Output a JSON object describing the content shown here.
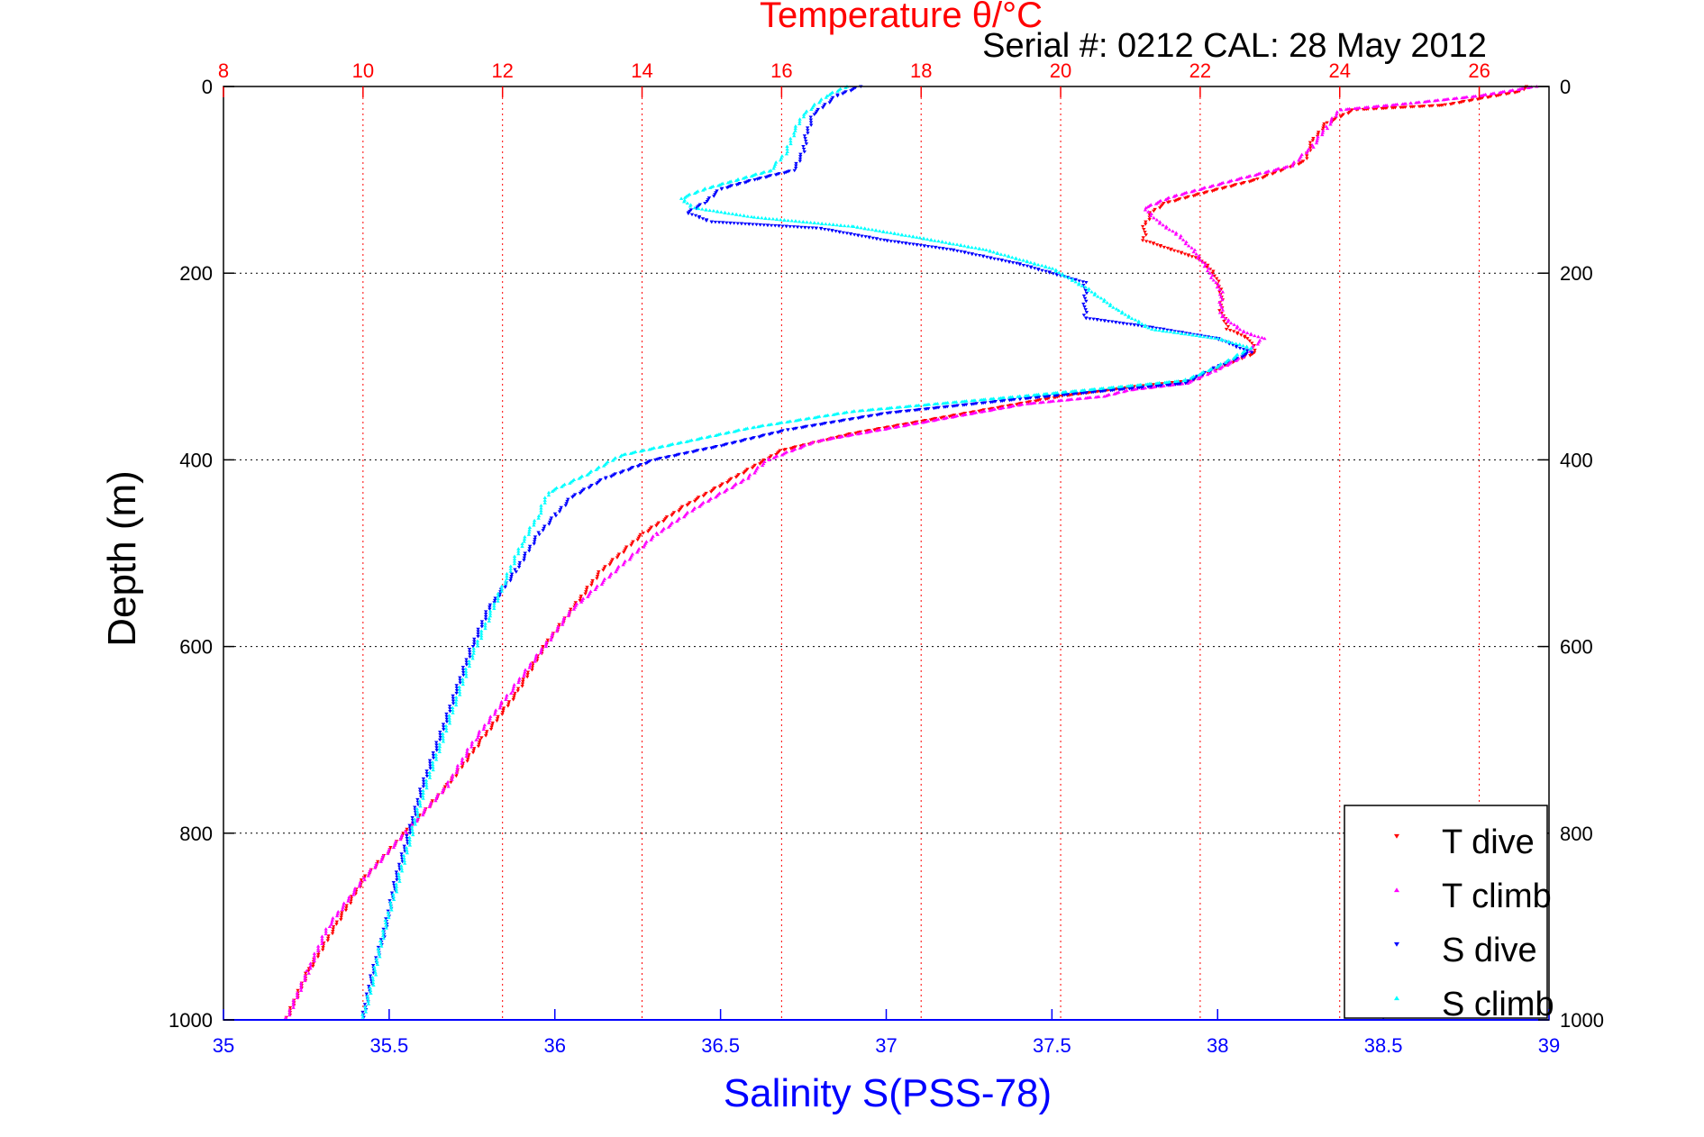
{
  "chart_data": {
    "type": "scatter",
    "title": "Temperature θ/°C",
    "subtitle": "Serial #: 0212  CAL: 28 May 2012",
    "xlabel": "Salinity S(PSS-78)",
    "ylabel": "Depth (m)",
    "x_salinity": {
      "range": [
        35,
        39
      ],
      "ticks": [
        "35",
        "35.5",
        "36",
        "36.5",
        "37",
        "37.5",
        "38",
        "38.5",
        "39"
      ]
    },
    "x_temperature": {
      "range": [
        8,
        27
      ],
      "ticks": [
        "8",
        "10",
        "12",
        "14",
        "16",
        "18",
        "20",
        "22",
        "24",
        "26"
      ]
    },
    "y_depth": {
      "range": [
        0,
        1000
      ],
      "reversed": true,
      "ticks": [
        "0",
        "200",
        "400",
        "600",
        "800",
        "1000"
      ]
    },
    "grid": true,
    "legend_position": "bottom-right",
    "series": [
      {
        "name": "T dive",
        "axis": "temperature",
        "color": "#ff0000",
        "marker": "triangle-down",
        "points": [
          [
            26.7,
            0
          ],
          [
            26.6,
            5
          ],
          [
            25.5,
            20
          ],
          [
            24.2,
            25
          ],
          [
            23.8,
            40
          ],
          [
            23.6,
            60
          ],
          [
            23.5,
            80
          ],
          [
            22.8,
            100
          ],
          [
            22.0,
            115
          ],
          [
            21.5,
            125
          ],
          [
            21.3,
            135
          ],
          [
            21.2,
            150
          ],
          [
            21.2,
            165
          ],
          [
            21.6,
            175
          ],
          [
            22.0,
            185
          ],
          [
            22.2,
            200
          ],
          [
            22.3,
            220
          ],
          [
            22.3,
            240
          ],
          [
            22.4,
            260
          ],
          [
            22.7,
            270
          ],
          [
            22.8,
            285
          ],
          [
            22.3,
            300
          ],
          [
            21.9,
            315
          ],
          [
            21.0,
            322
          ],
          [
            20.0,
            332
          ],
          [
            18.5,
            352
          ],
          [
            17.0,
            372
          ],
          [
            16.0,
            390
          ],
          [
            15.3,
            420
          ],
          [
            14.6,
            450
          ],
          [
            14.0,
            480
          ],
          [
            13.4,
            520
          ],
          [
            13.0,
            560
          ],
          [
            12.6,
            600
          ],
          [
            12.2,
            650
          ],
          [
            11.7,
            700
          ],
          [
            11.2,
            750
          ],
          [
            10.6,
            800
          ],
          [
            10.0,
            850
          ],
          [
            9.6,
            900
          ],
          [
            9.2,
            950
          ],
          [
            8.9,
            1000
          ]
        ]
      },
      {
        "name": "T climb",
        "axis": "temperature",
        "color": "#ff00ff",
        "marker": "triangle-up",
        "points": [
          [
            26.8,
            0
          ],
          [
            26.0,
            10
          ],
          [
            25.0,
            18
          ],
          [
            24.0,
            25
          ],
          [
            23.8,
            45
          ],
          [
            23.6,
            65
          ],
          [
            23.3,
            85
          ],
          [
            22.5,
            100
          ],
          [
            21.6,
            118
          ],
          [
            21.2,
            130
          ],
          [
            21.4,
            145
          ],
          [
            21.7,
            160
          ],
          [
            21.9,
            175
          ],
          [
            22.1,
            195
          ],
          [
            22.3,
            220
          ],
          [
            22.3,
            245
          ],
          [
            22.6,
            262
          ],
          [
            22.9,
            270
          ],
          [
            22.6,
            290
          ],
          [
            22.2,
            305
          ],
          [
            21.8,
            318
          ],
          [
            21.0,
            325
          ],
          [
            20.6,
            332
          ],
          [
            19.5,
            340
          ],
          [
            18.0,
            360
          ],
          [
            16.5,
            380
          ],
          [
            15.8,
            400
          ],
          [
            15.5,
            420
          ],
          [
            14.8,
            450
          ],
          [
            14.2,
            480
          ],
          [
            13.6,
            520
          ],
          [
            13.0,
            560
          ],
          [
            12.6,
            600
          ],
          [
            12.1,
            650
          ],
          [
            11.6,
            700
          ],
          [
            11.2,
            750
          ],
          [
            10.6,
            800
          ],
          [
            10.0,
            850
          ],
          [
            9.5,
            900
          ],
          [
            9.2,
            950
          ],
          [
            8.9,
            1000
          ]
        ]
      },
      {
        "name": "S dive",
        "axis": "salinity",
        "color": "#0000ff",
        "marker": "triangle-down",
        "points": [
          [
            36.92,
            0
          ],
          [
            36.85,
            10
          ],
          [
            36.78,
            30
          ],
          [
            36.76,
            50
          ],
          [
            36.75,
            70
          ],
          [
            36.72,
            90
          ],
          [
            36.6,
            100
          ],
          [
            36.5,
            110
          ],
          [
            36.45,
            125
          ],
          [
            36.4,
            135
          ],
          [
            36.47,
            145
          ],
          [
            36.8,
            152
          ],
          [
            37.0,
            165
          ],
          [
            37.2,
            175
          ],
          [
            37.4,
            190
          ],
          [
            37.6,
            210
          ],
          [
            37.6,
            230
          ],
          [
            37.6,
            248
          ],
          [
            37.8,
            258
          ],
          [
            38.0,
            270
          ],
          [
            38.1,
            285
          ],
          [
            38.0,
            300
          ],
          [
            37.9,
            318
          ],
          [
            37.4,
            335
          ],
          [
            37.0,
            350
          ],
          [
            36.7,
            368
          ],
          [
            36.5,
            385
          ],
          [
            36.3,
            400
          ],
          [
            36.15,
            420
          ],
          [
            36.05,
            440
          ],
          [
            36.0,
            460
          ],
          [
            35.95,
            480
          ],
          [
            35.88,
            520
          ],
          [
            35.8,
            560
          ],
          [
            35.75,
            600
          ],
          [
            35.7,
            650
          ],
          [
            35.65,
            700
          ],
          [
            35.6,
            750
          ],
          [
            35.56,
            800
          ],
          [
            35.52,
            850
          ],
          [
            35.49,
            900
          ],
          [
            35.45,
            950
          ],
          [
            35.42,
            1000
          ]
        ]
      },
      {
        "name": "S climb",
        "axis": "salinity",
        "color": "#00ffff",
        "marker": "triangle-up",
        "points": [
          [
            36.88,
            0
          ],
          [
            36.82,
            10
          ],
          [
            36.75,
            30
          ],
          [
            36.72,
            50
          ],
          [
            36.7,
            70
          ],
          [
            36.65,
            90
          ],
          [
            36.55,
            100
          ],
          [
            36.45,
            110
          ],
          [
            36.38,
            120
          ],
          [
            36.42,
            130
          ],
          [
            36.6,
            140
          ],
          [
            36.9,
            150
          ],
          [
            37.1,
            162
          ],
          [
            37.3,
            175
          ],
          [
            37.5,
            195
          ],
          [
            37.6,
            215
          ],
          [
            37.7,
            240
          ],
          [
            37.8,
            260
          ],
          [
            38.0,
            270
          ],
          [
            38.1,
            280
          ],
          [
            38.0,
            300
          ],
          [
            37.9,
            315
          ],
          [
            37.4,
            332
          ],
          [
            36.9,
            348
          ],
          [
            36.6,
            365
          ],
          [
            36.4,
            380
          ],
          [
            36.2,
            395
          ],
          [
            36.1,
            415
          ],
          [
            35.98,
            435
          ],
          [
            35.95,
            460
          ],
          [
            35.9,
            490
          ],
          [
            35.85,
            530
          ],
          [
            35.8,
            570
          ],
          [
            35.75,
            610
          ],
          [
            35.7,
            660
          ],
          [
            35.65,
            710
          ],
          [
            35.6,
            760
          ],
          [
            35.56,
            810
          ],
          [
            35.52,
            860
          ],
          [
            35.48,
            910
          ],
          [
            35.45,
            960
          ],
          [
            35.42,
            1000
          ]
        ]
      }
    ]
  }
}
